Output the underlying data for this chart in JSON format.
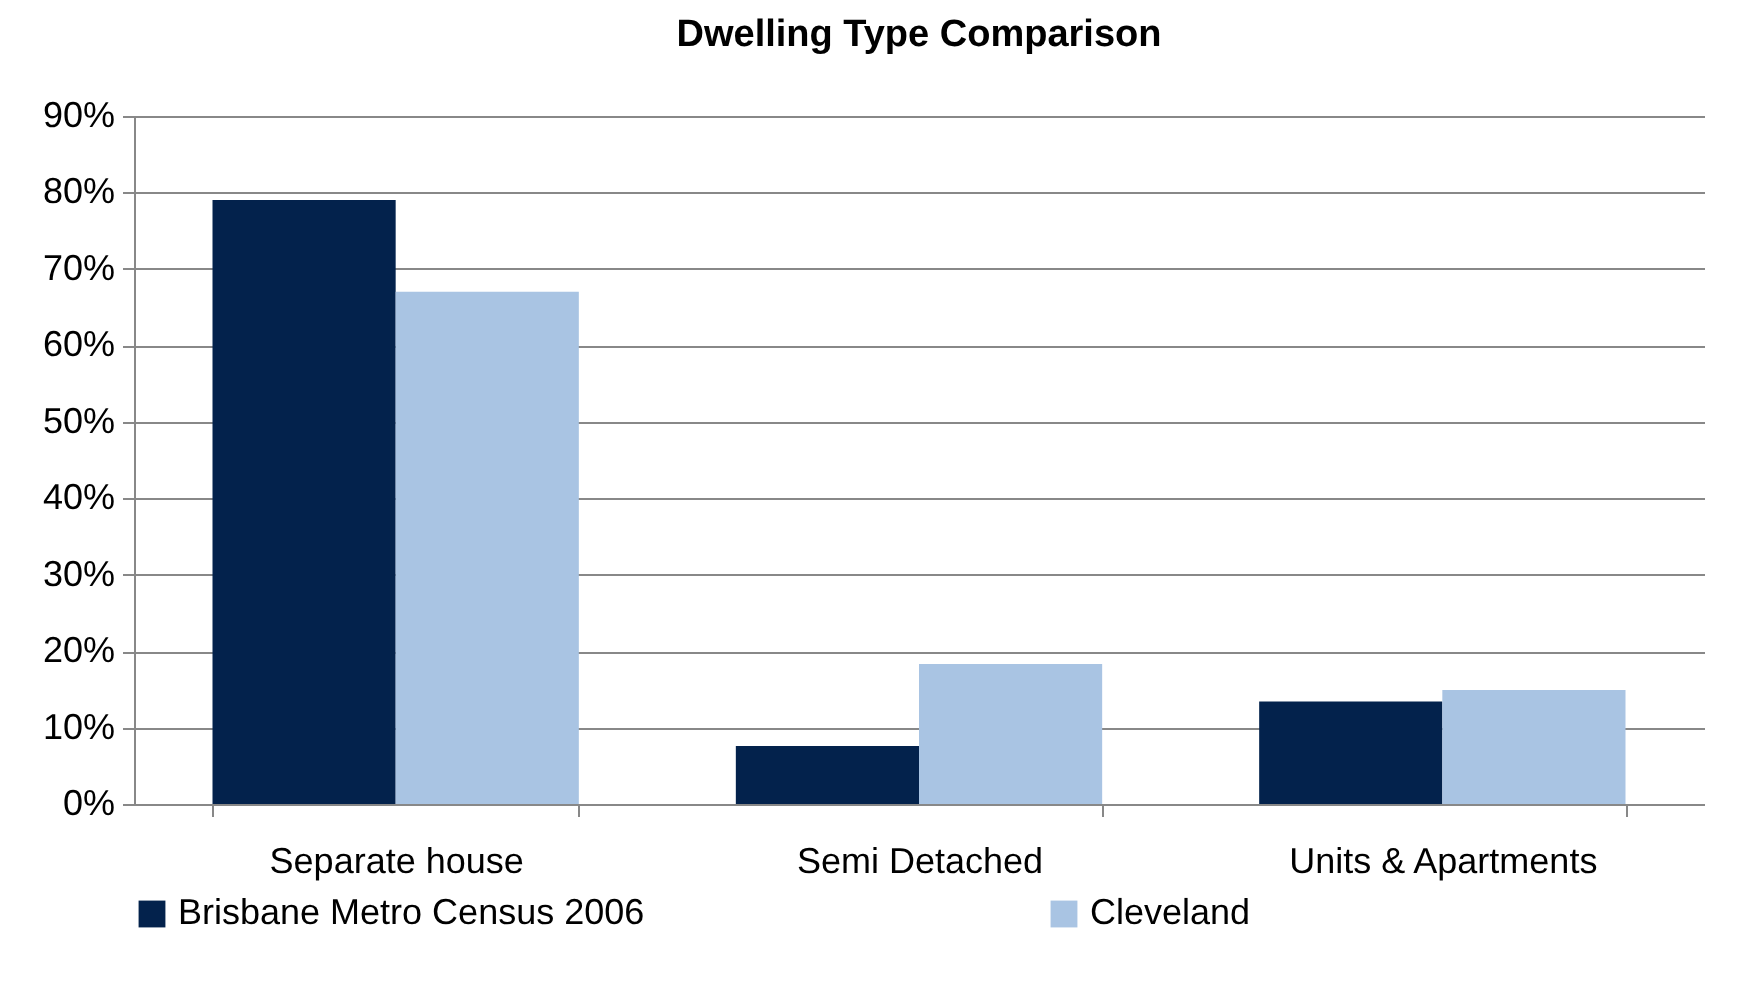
{
  "chart_data": {
    "type": "bar",
    "title": "Dwelling Type Comparison",
    "categories": [
      "Separate house",
      "Semi Detached",
      "Units & Apartments"
    ],
    "series": [
      {
        "name": "Brisbane Metro Census 2006",
        "color": "#03224c",
        "values": [
          79,
          7.6,
          13.4
        ]
      },
      {
        "name": "Cleveland",
        "color": "#a9c4e3",
        "values": [
          67,
          18.3,
          14.9
        ]
      }
    ],
    "ylim": [
      0,
      90
    ],
    "yticks": [
      {
        "value": 0,
        "label": "0%"
      },
      {
        "value": 10,
        "label": "10%"
      },
      {
        "value": 20,
        "label": "20%"
      },
      {
        "value": 30,
        "label": "30%"
      },
      {
        "value": 40,
        "label": "40%"
      },
      {
        "value": 50,
        "label": "50%"
      },
      {
        "value": 60,
        "label": "60%"
      },
      {
        "value": 70,
        "label": "70%"
      },
      {
        "value": 80,
        "label": "80%"
      },
      {
        "value": 90,
        "label": "90%"
      }
    ],
    "grid": "y",
    "legend": "bottom"
  }
}
